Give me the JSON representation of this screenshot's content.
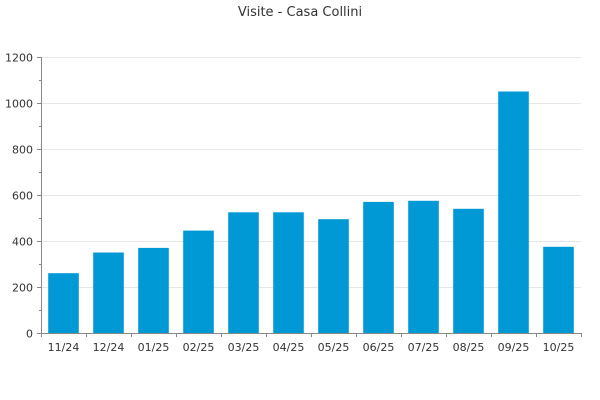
{
  "chart_data": {
    "type": "bar",
    "title": "Visite - Casa Collini",
    "xlabel": "",
    "ylabel": "",
    "categories": [
      "11/24",
      "12/24",
      "01/25",
      "02/25",
      "03/25",
      "04/25",
      "05/25",
      "06/25",
      "07/25",
      "08/25",
      "09/25",
      "10/25"
    ],
    "values": [
      260,
      350,
      370,
      445,
      525,
      525,
      495,
      570,
      575,
      540,
      1050,
      375
    ],
    "ylim": [
      0,
      1200
    ],
    "yticks": [
      0,
      200,
      400,
      600,
      800,
      1000,
      1200
    ],
    "grid": true,
    "bar_color": "#0099d6"
  }
}
